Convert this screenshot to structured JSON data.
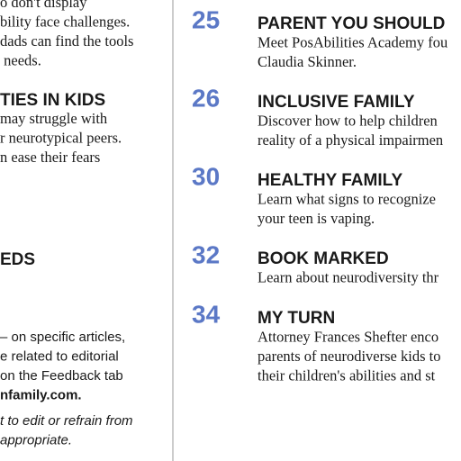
{
  "left_column": {
    "intro_lines": [
      "o don't display",
      "bility face challenges.",
      "dads can find the tools",
      " needs."
    ],
    "section_1": {
      "heading": "TIES IN KIDS",
      "lines": [
        "may struggle with",
        "r neurotypical peers.",
        "n ease their fears"
      ]
    },
    "section_2": {
      "heading": "EDS"
    },
    "feedback_lines": [
      "– on specific articles,",
      "e related to editorial",
      "on the Feedback tab",
      "nfamily.com."
    ],
    "note_lines": [
      "t to edit or refrain from",
      "appropriate."
    ]
  },
  "contents": [
    {
      "page": 25,
      "heading": "PARENT YOU SHOULD",
      "lines": [
        "Meet PosAbilities Academy fou",
        "Claudia Skinner."
      ]
    },
    {
      "page": 26,
      "heading": "INCLUSIVE FAMILY",
      "lines": [
        "Discover how to help children",
        "reality of a physical impairmen"
      ]
    },
    {
      "page": 30,
      "heading": "HEALTHY FAMILY",
      "lines": [
        "Learn what signs to recognize",
        "your teen is vaping."
      ]
    },
    {
      "page": 32,
      "heading": "BOOK MARKED",
      "lines": [
        "Learn about neurodiversity thr"
      ]
    },
    {
      "page": 34,
      "heading": "MY TURN",
      "lines": [
        "Attorney Frances Shefter enco",
        "parents of neurodiverse kids to",
        "their children's abilities and st"
      ]
    }
  ]
}
